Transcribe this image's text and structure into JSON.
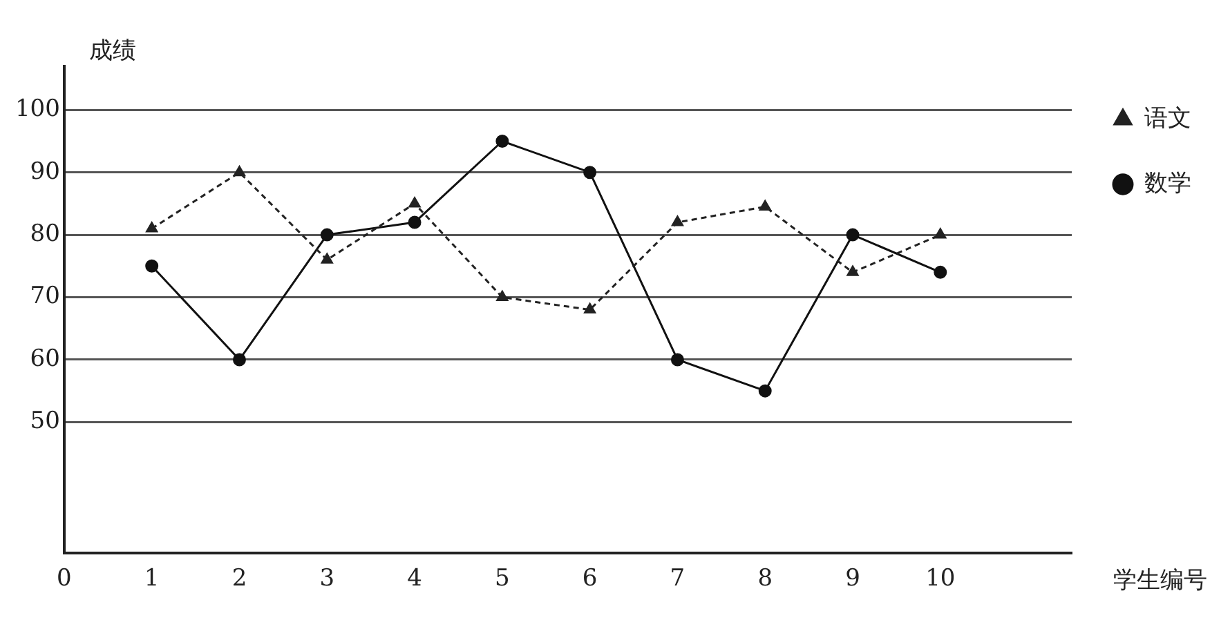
{
  "chart_data": {
    "type": "line",
    "xlabel": "学生编号",
    "ylabel": "成绩",
    "x": [
      1,
      2,
      3,
      4,
      5,
      6,
      7,
      8,
      9,
      10
    ],
    "xlim": [
      0,
      11.5
    ],
    "xticks": [
      0,
      1,
      2,
      3,
      4,
      5,
      6,
      7,
      8,
      9,
      10
    ],
    "ylim": [
      29,
      107
    ],
    "yticks": [
      50,
      60,
      70,
      80,
      90,
      100
    ],
    "grid": "y",
    "legend": "right",
    "series": [
      {
        "name": "语文",
        "color": "#222222",
        "marker": "triangle",
        "line_style": "dashed",
        "values": [
          81,
          90,
          76,
          85,
          70,
          68,
          82,
          84.5,
          74,
          80
        ]
      },
      {
        "name": "数学",
        "color": "#111111",
        "marker": "circle",
        "line_style": "solid",
        "values": [
          75,
          60,
          80,
          82,
          95,
          90,
          60,
          55,
          80,
          74
        ]
      }
    ]
  }
}
